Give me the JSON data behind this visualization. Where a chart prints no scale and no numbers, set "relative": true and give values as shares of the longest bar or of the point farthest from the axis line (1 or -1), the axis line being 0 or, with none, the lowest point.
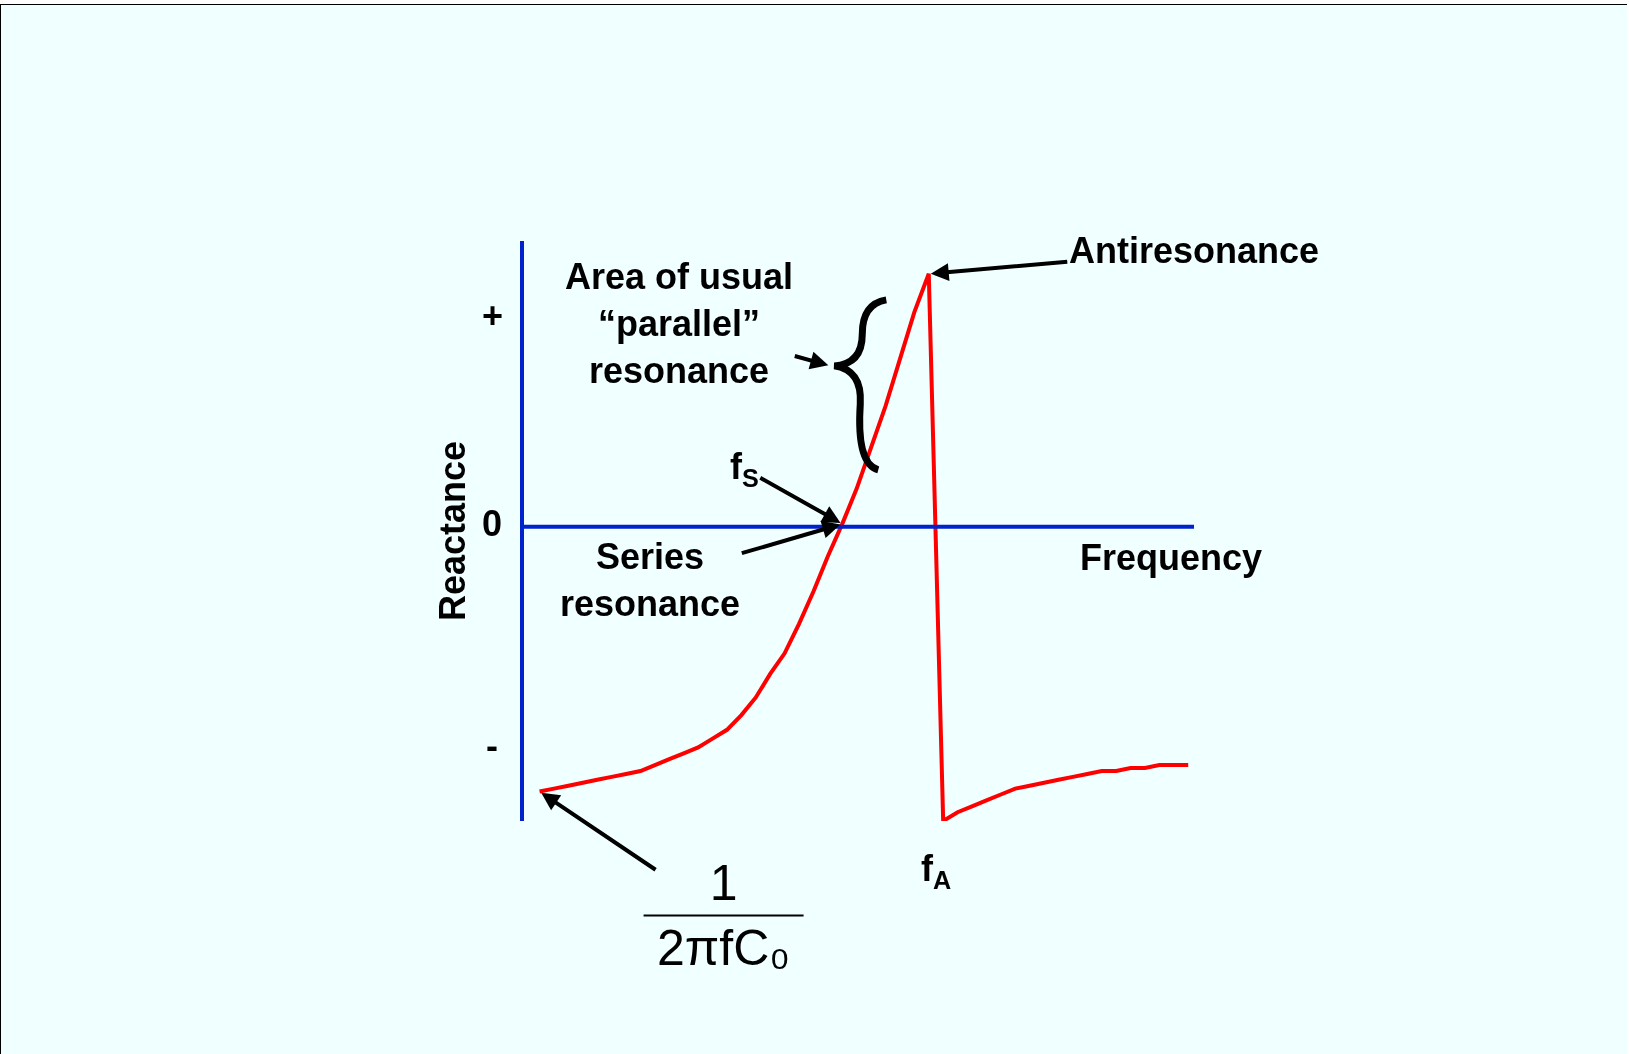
{
  "chart_data": {
    "type": "line",
    "relative": true,
    "xlabel": "Frequency",
    "ylabel": "Reactance",
    "color": "#ff0000",
    "categories": [
      null,
      null,
      null,
      null,
      null,
      null,
      null,
      null,
      null,
      null,
      null,
      null,
      null,
      null,
      null,
      null,
      null,
      null,
      null,
      null,
      null,
      null,
      null,
      null,
      null,
      null,
      null,
      null,
      null,
      null,
      null,
      null,
      null,
      null,
      null,
      null,
      null,
      null,
      null,
      null,
      null,
      null,
      null,
      null,
      null,
      null
    ],
    "values": [
      -0.9,
      -0.89,
      -0.88,
      -0.87,
      -0.86,
      -0.85,
      -0.84,
      -0.83,
      -0.81,
      -0.79,
      -0.77,
      -0.75,
      -0.72,
      -0.69,
      -0.64,
      -0.58,
      -0.5,
      -0.43,
      -0.33,
      -0.22,
      -0.1,
      0.01,
      0.13,
      0.27,
      0.41,
      0.57,
      0.73,
      0.86,
      -1.0,
      -0.97,
      -0.95,
      -0.93,
      -0.91,
      -0.89,
      -0.88,
      -0.87,
      -0.86,
      -0.85,
      -0.84,
      -0.83,
      -0.83,
      -0.82,
      -0.82,
      -0.81,
      -0.81,
      -0.81
    ],
    "ref_lines": [
      {
        "axis": "y",
        "value": 0,
        "color": "#0022cc"
      }
    ],
    "annotations": [
      "Antiresonance",
      "Area of usual\n“parallel”\nresonance",
      "f$_{S}$",
      "Series\nresonance",
      "1\n2πfC₀",
      "f$_{A}$",
      "+",
      "0",
      "-"
    ]
  }
}
